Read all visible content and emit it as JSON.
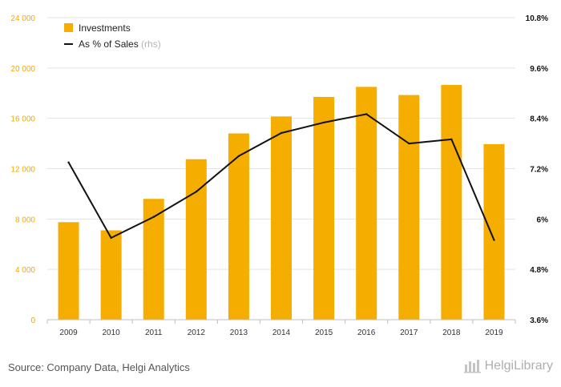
{
  "chart_data": {
    "type": "bar",
    "categories": [
      "2009",
      "2010",
      "2011",
      "2012",
      "2013",
      "2014",
      "2015",
      "2016",
      "2017",
      "2018",
      "2019"
    ],
    "series": [
      {
        "name": "Investments",
        "type": "bar",
        "axis": "left",
        "values": [
          7750,
          7100,
          9600,
          12750,
          14800,
          16150,
          17700,
          18500,
          17850,
          18650,
          13950
        ]
      },
      {
        "name": "As % of Sales",
        "type": "line",
        "axis": "right",
        "values": [
          7.35,
          5.55,
          6.05,
          6.65,
          7.5,
          8.05,
          8.3,
          8.5,
          7.8,
          7.9,
          5.5
        ]
      }
    ],
    "legend": {
      "rhs_suffix": "(rhs)",
      "placement": "top-left"
    },
    "y_left": {
      "ylim": [
        0,
        24000
      ],
      "ticks": [
        0,
        4000,
        8000,
        12000,
        16000,
        20000,
        24000
      ],
      "tick_labels": [
        "0",
        "4 000",
        "8 000",
        "12 000",
        "16 000",
        "20 000",
        "24 000"
      ]
    },
    "y_right": {
      "ylim": [
        3.6,
        10.8
      ],
      "ticks": [
        3.6,
        4.8,
        6,
        7.2,
        8.4,
        9.6,
        10.8
      ],
      "tick_labels": [
        "3.6%",
        "4.8%",
        "6%",
        "7.2%",
        "8.4%",
        "9.6%",
        "10.8%"
      ]
    },
    "grid": true,
    "colors": {
      "bar": "#f5ad00",
      "line": "#111111",
      "grid": "#e3e3e3",
      "left_ticks": "#f5a800"
    }
  },
  "footer": {
    "source": "Source: Company Data, Helgi Analytics",
    "brand": "HelgiLibrary",
    "brand_icon": "helgi-logo-icon"
  }
}
